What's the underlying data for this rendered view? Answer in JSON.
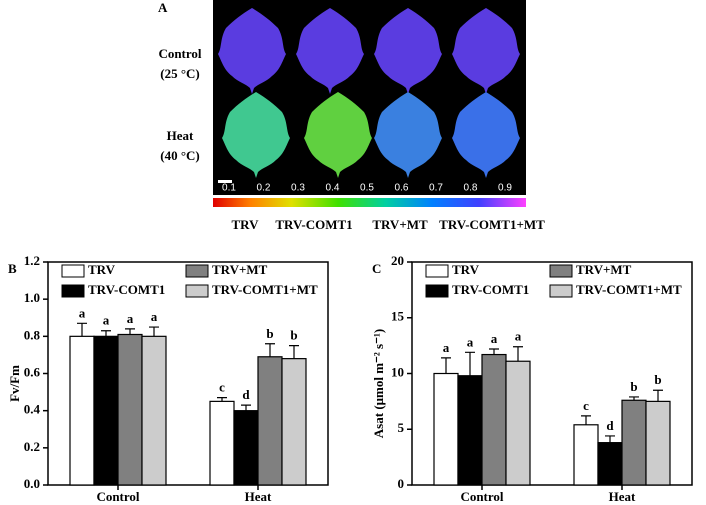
{
  "panel_a": {
    "label": "A",
    "rows": [
      [
        "Control",
        "(25 °C)"
      ],
      [
        "Heat",
        "(40 °C)"
      ]
    ],
    "columns": [
      "TRV",
      "TRV-COMT1",
      "TRV+MT",
      "TRV-COMT1+MT"
    ],
    "colorbar_ticks": [
      0.1,
      0.2,
      0.3,
      0.4,
      0.5,
      0.6,
      0.7,
      0.8,
      0.9
    ]
  },
  "chart_data": [
    {
      "type": "bar",
      "panel": "B",
      "y_label": "Fv/Fm",
      "categories": [
        "Control",
        "Heat"
      ],
      "ylim": [
        0,
        1.2
      ],
      "yticks": [
        {
          "value": 0,
          "label": "0.0"
        },
        0.2,
        0.4,
        0.6,
        0.8,
        {
          "value": 1,
          "label": "1.0"
        },
        1.2
      ],
      "series": [
        {
          "name": "TRV",
          "color": "#ffffff",
          "values": [
            0.8,
            0.45
          ],
          "errors": [
            0.07,
            0.02
          ],
          "letters": [
            "a",
            "c"
          ]
        },
        {
          "name": "TRV-COMT1",
          "color": "#000000",
          "values": [
            0.8,
            0.4
          ],
          "errors": [
            0.03,
            0.03
          ],
          "letters": [
            "a",
            "d"
          ]
        },
        {
          "name": "TRV+MT",
          "color": "#808080",
          "values": [
            0.81,
            0.69
          ],
          "errors": [
            0.03,
            0.07
          ],
          "letters": [
            "a",
            "b"
          ]
        },
        {
          "name": "TRV-COMT1+MT",
          "color": "#cccccc",
          "values": [
            0.8,
            0.68
          ],
          "errors": [
            0.05,
            0.07
          ],
          "letters": [
            "a",
            "b"
          ]
        }
      ]
    },
    {
      "type": "bar",
      "panel": "C",
      "y_label": "Asat (μmol m⁻² s⁻¹)",
      "categories": [
        "Control",
        "Heat"
      ],
      "ylim": [
        0,
        20
      ],
      "yticks": [
        0,
        5,
        10,
        15,
        20
      ],
      "series": [
        {
          "name": "TRV",
          "color": "#ffffff",
          "values": [
            10.0,
            5.4
          ],
          "errors": [
            1.4,
            0.8
          ],
          "letters": [
            "a",
            "c"
          ]
        },
        {
          "name": "TRV-COMT1",
          "color": "#000000",
          "values": [
            9.8,
            3.8
          ],
          "errors": [
            2.1,
            0.6
          ],
          "letters": [
            "a",
            "d"
          ]
        },
        {
          "name": "TRV+MT",
          "color": "#808080",
          "values": [
            11.7,
            7.6
          ],
          "errors": [
            0.5,
            0.3
          ],
          "letters": [
            "a",
            "b"
          ]
        },
        {
          "name": "TRV-COMT1+MT",
          "color": "#cccccc",
          "values": [
            11.1,
            7.5
          ],
          "errors": [
            1.3,
            1.0
          ],
          "letters": [
            "a",
            "b"
          ]
        }
      ]
    }
  ]
}
